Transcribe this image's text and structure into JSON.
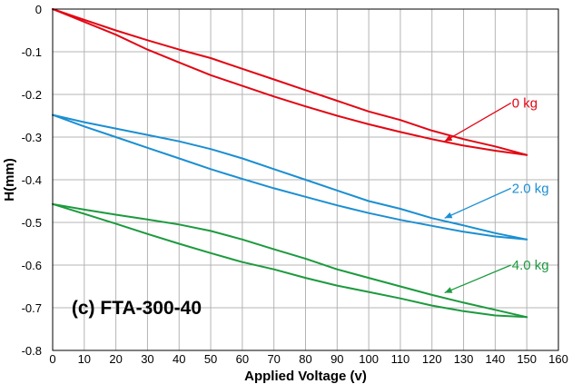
{
  "chart_data": {
    "type": "line",
    "title": "",
    "panel_label": "(c) FTA-300-40",
    "xlabel": "Applied Voltage (v)",
    "ylabel": "H(mm)",
    "xlim": [
      0,
      160
    ],
    "ylim": [
      -0.8,
      0
    ],
    "xticks": [
      0,
      10,
      20,
      30,
      40,
      50,
      60,
      70,
      80,
      90,
      100,
      110,
      120,
      130,
      140,
      150,
      160
    ],
    "yticks": [
      0,
      -0.1,
      -0.2,
      -0.3,
      -0.4,
      -0.5,
      -0.6,
      -0.7,
      -0.8
    ],
    "ytick_labels": [
      "0",
      "-0.1",
      "-0.2",
      "-0.3",
      "-0.4",
      "-0.5",
      "-0.6",
      "-0.7",
      "-0.8"
    ],
    "grid": true,
    "legend": "none",
    "series": [
      {
        "name": "0 kg",
        "color": "#e30613",
        "loops": [
          {
            "x": [
              0,
              10,
              20,
              30,
              40,
              50,
              60,
              70,
              80,
              90,
              100,
              110,
              120,
              130,
              140,
              150
            ],
            "y": [
              0,
              -0.025,
              -0.05,
              -0.073,
              -0.095,
              -0.115,
              -0.14,
              -0.165,
              -0.19,
              -0.215,
              -0.24,
              -0.26,
              -0.285,
              -0.305,
              -0.322,
              -0.342
            ]
          },
          {
            "x": [
              0,
              10,
              20,
              30,
              40,
              50,
              60,
              70,
              80,
              90,
              100,
              110,
              120,
              130,
              140,
              150
            ],
            "y": [
              0,
              -0.03,
              -0.06,
              -0.095,
              -0.125,
              -0.155,
              -0.18,
              -0.205,
              -0.228,
              -0.25,
              -0.27,
              -0.288,
              -0.305,
              -0.32,
              -0.332,
              -0.342
            ]
          }
        ]
      },
      {
        "name": "2.0 kg",
        "color": "#1b8fd2",
        "loops": [
          {
            "x": [
              0,
              10,
              20,
              30,
              40,
              50,
              60,
              70,
              80,
              90,
              100,
              110,
              120,
              130,
              140,
              150
            ],
            "y": [
              -0.248,
              -0.265,
              -0.28,
              -0.295,
              -0.31,
              -0.328,
              -0.35,
              -0.375,
              -0.4,
              -0.425,
              -0.45,
              -0.468,
              -0.49,
              -0.507,
              -0.525,
              -0.54
            ]
          },
          {
            "x": [
              0,
              10,
              20,
              30,
              40,
              50,
              60,
              70,
              80,
              90,
              100,
              110,
              120,
              130,
              140,
              150
            ],
            "y": [
              -0.248,
              -0.275,
              -0.3,
              -0.325,
              -0.35,
              -0.375,
              -0.398,
              -0.42,
              -0.44,
              -0.46,
              -0.478,
              -0.494,
              -0.508,
              -0.522,
              -0.533,
              -0.54
            ]
          }
        ]
      },
      {
        "name": "4.0 kg",
        "color": "#1c9a3e",
        "loops": [
          {
            "x": [
              0,
              10,
              20,
              30,
              40,
              50,
              60,
              70,
              80,
              90,
              100,
              110,
              120,
              130,
              140,
              150
            ],
            "y": [
              -0.457,
              -0.47,
              -0.482,
              -0.493,
              -0.505,
              -0.52,
              -0.54,
              -0.563,
              -0.585,
              -0.61,
              -0.63,
              -0.65,
              -0.67,
              -0.688,
              -0.705,
              -0.722
            ]
          },
          {
            "x": [
              0,
              10,
              20,
              30,
              40,
              50,
              60,
              70,
              80,
              90,
              100,
              110,
              120,
              130,
              140,
              150
            ],
            "y": [
              -0.457,
              -0.48,
              -0.503,
              -0.527,
              -0.55,
              -0.572,
              -0.593,
              -0.61,
              -0.63,
              -0.648,
              -0.663,
              -0.678,
              -0.695,
              -0.708,
              -0.718,
              -0.722
            ]
          }
        ]
      }
    ],
    "annotations": [
      {
        "text": "0 kg",
        "series": "0 kg",
        "at": {
          "x": 145,
          "y": -0.22
        },
        "arrow_to": {
          "x": 124,
          "y": -0.31
        }
      },
      {
        "text": "2.0 kg",
        "series": "2.0 kg",
        "at": {
          "x": 145,
          "y": -0.42
        },
        "arrow_to": {
          "x": 124,
          "y": -0.49
        }
      },
      {
        "text": "4.0 kg",
        "series": "4.0 kg",
        "at": {
          "x": 145,
          "y": -0.6
        },
        "arrow_to": {
          "x": 124,
          "y": -0.665
        }
      }
    ]
  }
}
